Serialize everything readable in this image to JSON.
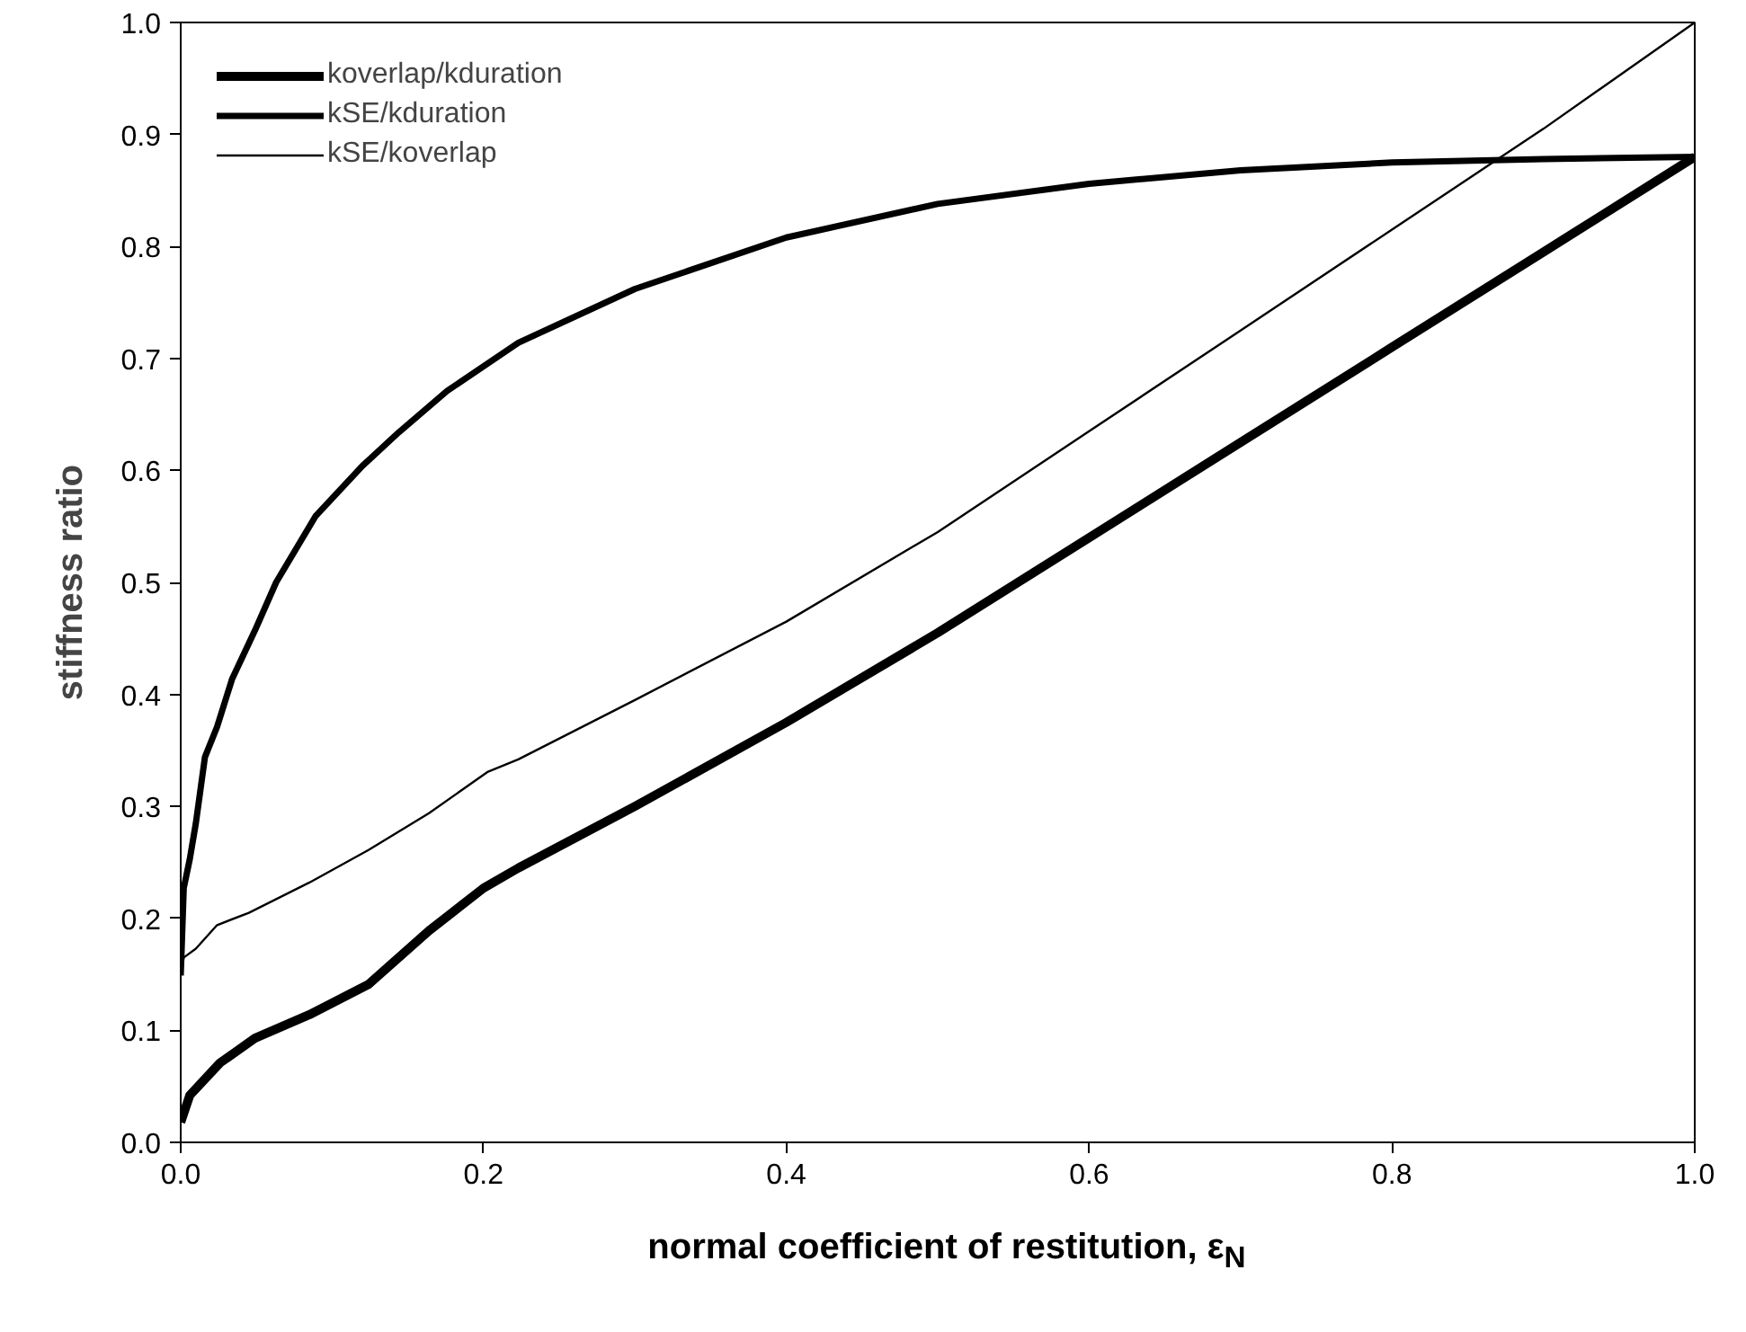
{
  "chart_data": {
    "type": "line",
    "xlabel": "normal coefficient of restitution, ε$_{N}$",
    "ylabel": "stiffness ratio",
    "xlim": [
      0,
      1
    ],
    "ylim": [
      0,
      1
    ],
    "xticks": [
      {
        "value": 0,
        "label": "0.0"
      },
      {
        "value": 0.2,
        "label": "0.2"
      },
      {
        "value": 0.4,
        "label": "0.4"
      },
      {
        "value": 0.6,
        "label": "0.6"
      },
      {
        "value": 0.8,
        "label": "0.8"
      },
      {
        "value": 1,
        "label": "1.0"
      }
    ],
    "yticks": [
      {
        "value": 0,
        "label": "0.0"
      },
      {
        "value": 0.1,
        "label": "0.1"
      },
      {
        "value": 0.2,
        "label": "0.2"
      },
      {
        "value": 0.3,
        "label": "0.3"
      },
      {
        "value": 0.4,
        "label": "0.4"
      },
      {
        "value": 0.5,
        "label": "0.5"
      },
      {
        "value": 0.6,
        "label": "0.6"
      },
      {
        "value": 0.7,
        "label": "0.7"
      },
      {
        "value": 0.8,
        "label": "0.8"
      },
      {
        "value": 0.9,
        "label": "0.9"
      },
      {
        "value": 1,
        "label": "1.0"
      }
    ],
    "grid": false,
    "legend": "top left",
    "marker": "none",
    "line_style": "solid",
    "series": [
      {
        "name": "koverlap/kduration",
        "color": "#000000",
        "x": [
          0,
          0.006,
          0.026,
          0.049,
          0.085,
          0.124,
          0.164,
          0.2,
          0.223,
          0.3,
          0.4,
          0.5,
          0.6,
          0.7,
          0.8,
          0.9,
          1.0
        ],
        "values": [
          0.018,
          0.042,
          0.071,
          0.093,
          0.114,
          0.141,
          0.189,
          0.227,
          0.245,
          0.3,
          0.375,
          0.455,
          0.54,
          0.625,
          0.71,
          0.795,
          0.88
        ]
      },
      {
        "name": "kSE/kduration",
        "color": "#000000",
        "x": [
          0,
          0.002,
          0.006,
          0.01,
          0.016,
          0.024,
          0.034,
          0.049,
          0.063,
          0.089,
          0.12,
          0.144,
          0.176,
          0.223,
          0.3,
          0.4,
          0.5,
          0.6,
          0.7,
          0.8,
          0.9,
          1.0
        ],
        "values": [
          0.149,
          0.227,
          0.253,
          0.285,
          0.344,
          0.371,
          0.414,
          0.457,
          0.5,
          0.559,
          0.604,
          0.634,
          0.671,
          0.714,
          0.762,
          0.808,
          0.838,
          0.856,
          0.868,
          0.875,
          0.878,
          0.88
        ]
      },
      {
        "name": "kSE/koverlap",
        "color": "#000000",
        "x": [
          0,
          0.002,
          0.01,
          0.024,
          0.045,
          0.085,
          0.124,
          0.164,
          0.203,
          0.223,
          0.3,
          0.4,
          0.5,
          0.6,
          0.7,
          0.8,
          0.9,
          1.0
        ],
        "values": [
          0.149,
          0.165,
          0.173,
          0.194,
          0.205,
          0.232,
          0.261,
          0.294,
          0.331,
          0.342,
          0.395,
          0.465,
          0.545,
          0.635,
          0.725,
          0.815,
          0.905,
          1.0
        ]
      }
    ]
  }
}
